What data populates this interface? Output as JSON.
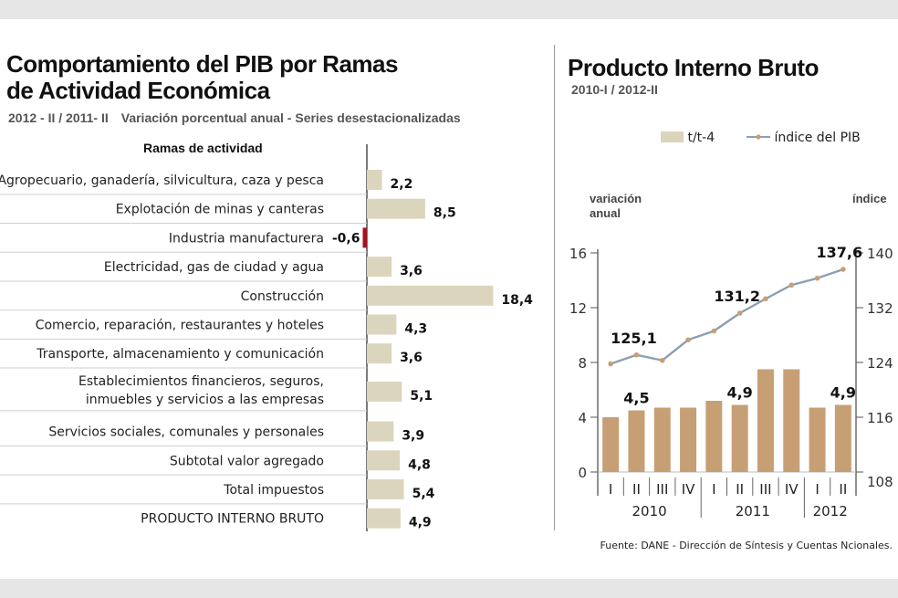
{
  "left_chart": {
    "title_line1": "Comportamiento del PIB por Ramas",
    "title_line2": "de Actividad Económica",
    "subtitle_period": "2012 - II / 2011- II",
    "subtitle_desc": "Variación porcentual anual - Series desestacionalizadas",
    "column_header": "Ramas de actividad"
  },
  "right_chart": {
    "title": "Producto Interno Bruto",
    "subtitle": "2010-I / 2012-II",
    "legend_bar": "t/t-4",
    "legend_line": "índice del PIB",
    "left_axis_title_1": "variación",
    "left_axis_title_2": "anual",
    "right_axis_title": "índice"
  },
  "source": "Fuente: DANE - Dirección de Síntesis y Cuentas Ncionales.",
  "colors": {
    "bar": "#dbd5bd",
    "negative_bar": "#a3141f",
    "column_bar": "#c79f75",
    "line": "#8c9fb3",
    "marker": "#c79f75"
  },
  "chart_data": [
    {
      "type": "bar",
      "orientation": "horizontal",
      "categories": [
        "Agropecuario, ganadería, silvicultura, caza y pesca",
        "Explotación de minas y canteras",
        "Industria manufacturera",
        "Electricidad, gas de ciudad y agua",
        "Construcción",
        "Comercio, reparación, restaurantes y hoteles",
        "Transporte, almacenamiento y comunicación",
        "Establecimientos financieros, seguros, | inmuebles y servicios a las empresas",
        "Servicios sociales, comunales y personales",
        "Subtotal valor agregado",
        "Total impuestos",
        "PRODUCTO INTERNO BRUTO"
      ],
      "values": [
        2.2,
        8.5,
        -0.6,
        3.6,
        18.4,
        4.3,
        3.6,
        5.1,
        3.9,
        4.8,
        5.4,
        4.9
      ],
      "labels": [
        "2,2",
        "8,5",
        "-0,6",
        "3,6",
        "18,4",
        "4,3",
        "3,6",
        "5,1",
        "3,9",
        "4,8",
        "5,4",
        "4,9"
      ]
    },
    {
      "type": "bar+line",
      "quarters": [
        "I",
        "II",
        "III",
        "IV",
        "I",
        "II",
        "III",
        "IV",
        "I",
        "II"
      ],
      "years": [
        "2010",
        "2011",
        "2012"
      ],
      "series": [
        {
          "name": "t/t-4",
          "axis": "left",
          "values": [
            4.0,
            4.5,
            4.7,
            4.7,
            5.2,
            4.9,
            7.5,
            7.5,
            4.7,
            4.9
          ]
        },
        {
          "name": "índice del PIB",
          "axis": "right",
          "values": [
            123.8,
            125.1,
            124.3,
            127.3,
            128.6,
            131.2,
            133.3,
            135.3,
            136.3,
            137.6
          ]
        }
      ],
      "bar_labels": [
        "",
        "4,5",
        "",
        "",
        "",
        "4,9",
        "",
        "",
        "",
        "4,9"
      ],
      "line_labels": [
        "",
        "125,1",
        "",
        "",
        "",
        "131,2",
        "",
        "",
        "",
        "137,6"
      ],
      "left_ylim": [
        0,
        16
      ],
      "left_ticks": [
        "0",
        "4",
        "8",
        "12",
        "16"
      ],
      "right_ylim": [
        108,
        140
      ],
      "right_ticks": [
        "108",
        "116",
        "124",
        "132",
        "140"
      ]
    }
  ]
}
